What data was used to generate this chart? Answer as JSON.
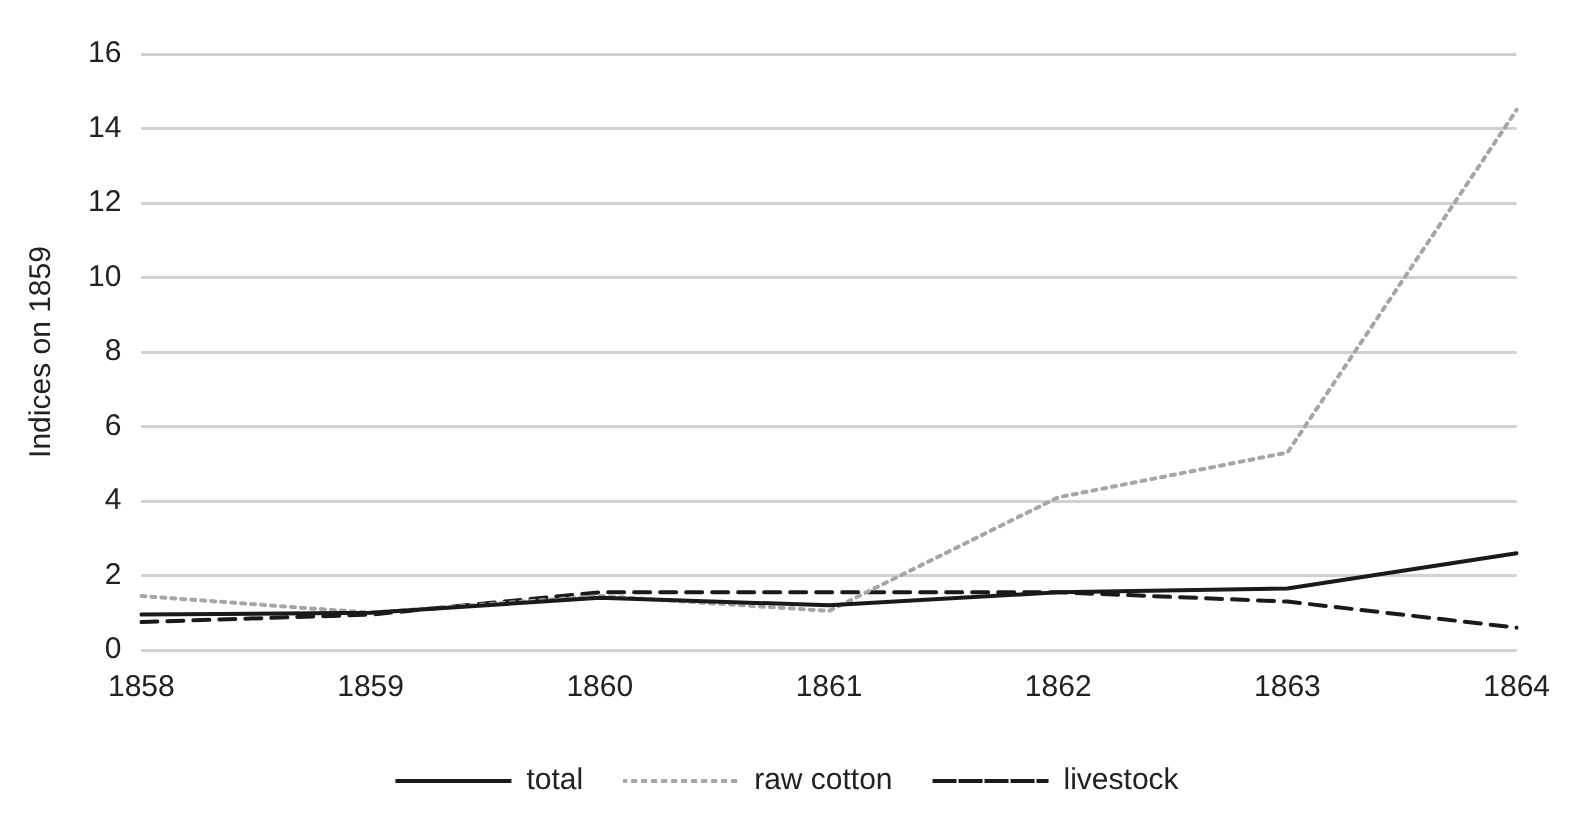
{
  "chart_data": {
    "type": "line",
    "ylabel": "Indices on 1859",
    "categories": [
      "1858",
      "1859",
      "1860",
      "1861",
      "1862",
      "1863",
      "1864"
    ],
    "series": [
      {
        "name": "total",
        "color": "#1a1a1a",
        "line_style": "solid",
        "values": [
          0.95,
          1.0,
          1.4,
          1.2,
          1.55,
          1.65,
          2.6
        ]
      },
      {
        "name": "raw cotton",
        "color": "#a6a6a6",
        "line_style": "dotted",
        "values": [
          1.45,
          1.0,
          1.45,
          1.05,
          4.1,
          5.3,
          14.5
        ]
      },
      {
        "name": "livestock",
        "color": "#1a1a1a",
        "line_style": "dashed",
        "values": [
          0.75,
          0.95,
          1.55,
          1.55,
          1.55,
          1.3,
          0.6
        ]
      }
    ],
    "ylim": [
      0,
      16
    ],
    "yticks": [
      0,
      2,
      4,
      6,
      8,
      10,
      12,
      14,
      16
    ],
    "grid": "y",
    "legend": "bottom",
    "marker": "none"
  }
}
